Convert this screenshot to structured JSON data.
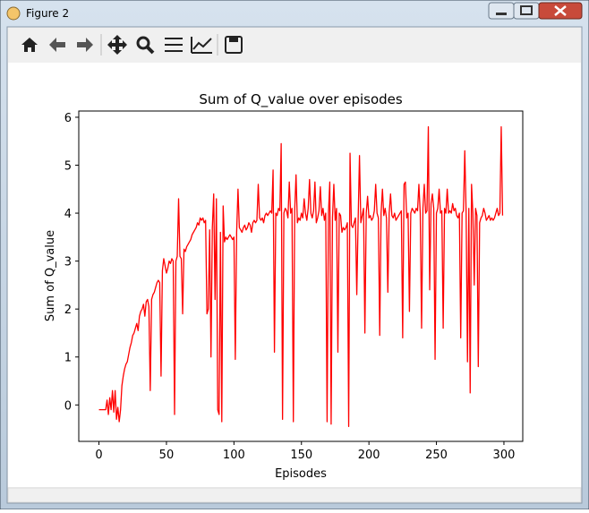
{
  "window": {
    "title": "Figure 2"
  },
  "chart_data": {
    "type": "line",
    "title": "Sum of Q_value over episodes",
    "x_label": "Episodes",
    "y_label": "Sum of Q_value",
    "color": "#ff0000",
    "xlim": [
      -14.95,
      313.95
    ],
    "xticks": [
      0,
      50,
      100,
      150,
      200,
      250,
      300
    ],
    "ylim": [
      -0.76,
      6.13
    ],
    "yticks": [
      0,
      1,
      2,
      3,
      4,
      5,
      6
    ],
    "values": [
      -0.1,
      -0.1,
      -0.1,
      -0.1,
      -0.1,
      -0.1,
      0.1,
      -0.2,
      0.15,
      -0.1,
      0.3,
      -0.15,
      0.3,
      -0.3,
      -0.05,
      -0.35,
      -0.1,
      0.4,
      0.6,
      0.75,
      0.85,
      0.9,
      1.05,
      1.2,
      1.3,
      1.45,
      1.5,
      1.6,
      1.7,
      1.55,
      1.85,
      1.95,
      2.0,
      2.1,
      1.85,
      2.15,
      2.2,
      2.05,
      0.3,
      2.2,
      2.3,
      2.35,
      2.45,
      2.55,
      2.6,
      2.55,
      0.6,
      2.8,
      3.05,
      2.9,
      2.75,
      2.85,
      3.0,
      2.95,
      3.05,
      3.0,
      -0.2,
      3.0,
      3.1,
      4.3,
      3.1,
      3.05,
      1.9,
      3.25,
      3.2,
      3.3,
      3.35,
      3.4,
      3.45,
      3.55,
      3.6,
      3.65,
      3.7,
      3.8,
      3.75,
      3.9,
      3.85,
      3.9,
      3.8,
      3.85,
      1.9,
      2.0,
      3.65,
      1.0,
      3.7,
      4.4,
      2.2,
      4.3,
      -0.1,
      -0.2,
      3.6,
      -0.35,
      4.15,
      3.4,
      3.5,
      3.45,
      3.5,
      3.55,
      3.5,
      3.45,
      3.5,
      0.95,
      3.6,
      4.5,
      3.7,
      3.65,
      3.6,
      3.7,
      3.75,
      3.65,
      3.7,
      3.8,
      3.75,
      3.6,
      3.8,
      3.85,
      3.8,
      3.85,
      4.6,
      3.9,
      3.85,
      3.9,
      3.8,
      3.95,
      4.0,
      3.95,
      4.0,
      4.05,
      4.0,
      4.9,
      1.1,
      4.0,
      3.95,
      4.1,
      4.05,
      5.45,
      -0.3,
      4.0,
      4.1,
      4.05,
      3.9,
      4.65,
      4.0,
      4.1,
      -0.35,
      4.05,
      4.8,
      3.8,
      3.9,
      3.85,
      4.0,
      3.9,
      4.3,
      4.0,
      3.85,
      4.1,
      4.7,
      4.0,
      3.9,
      4.05,
      4.65,
      3.8,
      3.9,
      4.05,
      4.55,
      3.95,
      4.1,
      3.85,
      4.0,
      -0.35,
      4.0,
      4.65,
      -0.4,
      3.9,
      4.6,
      3.85,
      4.1,
      1.1,
      4.0,
      3.95,
      3.6,
      3.7,
      3.65,
      3.7,
      3.8,
      -0.45,
      5.25,
      3.75,
      3.7,
      3.8,
      3.9,
      2.3,
      3.85,
      5.2,
      3.8,
      3.95,
      4.1,
      1.5,
      4.0,
      4.35,
      3.9,
      3.95,
      3.85,
      3.9,
      4.05,
      4.6,
      4.0,
      3.9,
      1.45,
      4.0,
      4.5,
      3.95,
      4.1,
      3.9,
      2.35,
      4.0,
      4.4,
      3.95,
      3.9,
      4.0,
      3.85,
      3.9,
      3.95,
      4.0,
      4.05,
      1.4,
      4.6,
      4.65,
      3.9,
      4.0,
      1.95,
      4.0,
      4.1,
      4.05,
      4.0,
      4.1,
      4.05,
      4.6,
      4.0,
      1.6,
      4.1,
      4.6,
      4.0,
      4.05,
      5.8,
      2.4,
      4.2,
      4.4,
      4.1,
      0.95,
      4.0,
      4.1,
      4.5,
      4.0,
      4.05,
      1.6,
      4.1,
      4.0,
      4.5,
      4.0,
      4.05,
      4.0,
      4.2,
      4.05,
      4.1,
      3.95,
      3.9,
      4.0,
      1.4,
      4.0,
      4.05,
      5.3,
      4.0,
      0.9,
      4.1,
      0.25,
      4.6,
      4.0,
      2.5,
      4.1,
      3.95,
      0.8,
      3.8,
      3.9,
      3.95,
      4.1,
      4.0,
      3.85,
      3.9,
      3.95,
      3.85,
      3.9,
      3.85,
      3.9,
      4.0,
      4.1,
      3.95,
      4.0,
      5.8,
      3.95
    ]
  }
}
